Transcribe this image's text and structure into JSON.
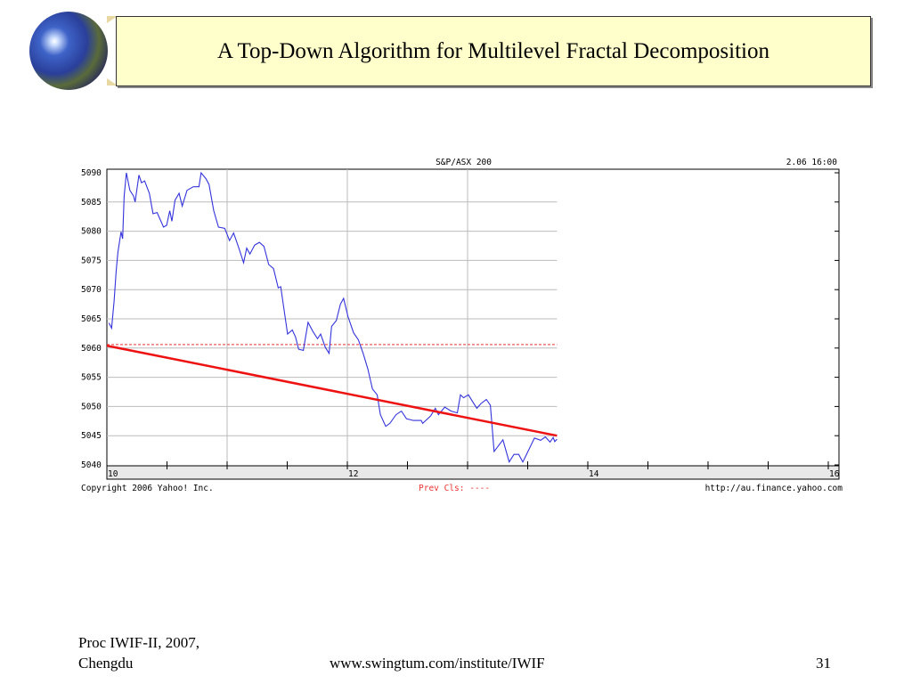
{
  "slide": {
    "title": "A Top-Down Algorithm for Multilevel Fractal Decomposition",
    "footer_left_line1": "Proc IWIF-II, 2007,",
    "footer_left_line2": "Chengdu",
    "footer_center": "www.swingtum.com/institute/IWIF",
    "page_number": "31",
    "logo_icon": "globe-icon"
  },
  "chart_data": {
    "type": "line",
    "title": "S&P/ASX 200",
    "timestamp": "2.06 16:00",
    "copyright": "Copyright 2006 Yahoo! Inc.",
    "prev_close_label": "Prev Cls: ----",
    "source_url": "http://au.finance.yahoo.com",
    "xlim": [
      10,
      16.07
    ],
    "ylim": [
      5040,
      5090
    ],
    "x_ticks": [
      10,
      12,
      14,
      16
    ],
    "x_tick_labels": [
      "10",
      "12",
      "14",
      "16"
    ],
    "y_ticks": [
      5040,
      5045,
      5050,
      5055,
      5060,
      5065,
      5070,
      5075,
      5080,
      5085,
      5090
    ],
    "y_tick_labels": [
      "5040",
      "5045",
      "5050",
      "5055",
      "5060",
      "5065",
      "5070",
      "5075",
      "5080",
      "5085",
      "5090"
    ],
    "grid": true,
    "colors": {
      "price": "#3333dd",
      "trend": "#ee1111",
      "prev_close": "#ee3333",
      "grid": "#bbbbbb",
      "axis_band": "#e8e8e8"
    },
    "prev_close": 5060.6,
    "trend_line": {
      "x": [
        10,
        13.744
      ],
      "y": [
        5060.4,
        5045.0
      ]
    },
    "series": [
      {
        "x": [
          10.018,
          10.039,
          10.06,
          10.078,
          10.092,
          10.118,
          10.131,
          10.144,
          10.162,
          10.191,
          10.222,
          10.235,
          10.267,
          10.288,
          10.314,
          10.353,
          10.384,
          10.418,
          10.471,
          10.497,
          10.523,
          10.541,
          10.567,
          10.601,
          10.627,
          10.667,
          10.719,
          10.766,
          10.784,
          10.824,
          10.85,
          10.889,
          10.928,
          10.98,
          11.02,
          11.054,
          11.098,
          11.137,
          11.163,
          11.19,
          11.229,
          11.268,
          11.307,
          11.346,
          11.386,
          11.425,
          11.446,
          11.503,
          11.542,
          11.569,
          11.595,
          11.634,
          11.673,
          11.712,
          11.752,
          11.778,
          11.817,
          11.848,
          11.869,
          11.908,
          11.942,
          11.969,
          12.005,
          12.052,
          12.092,
          12.131,
          12.17,
          12.209,
          12.248,
          12.275,
          12.319,
          12.353,
          12.405,
          12.45,
          12.492,
          12.549,
          12.614,
          12.627,
          12.693,
          12.732,
          12.758,
          12.81,
          12.863,
          12.915,
          12.941,
          12.967,
          13.007,
          13.046,
          13.077,
          13.111,
          13.156,
          13.19,
          13.221,
          13.294,
          13.346,
          13.386,
          13.425,
          13.459,
          13.49,
          13.556,
          13.608,
          13.647,
          13.686,
          13.712,
          13.725,
          13.744
        ],
        "y": [
          5064.3,
          5063.4,
          5068.0,
          5073.3,
          5076.4,
          5079.9,
          5078.7,
          5086.0,
          5090.0,
          5087.0,
          5086.0,
          5085.0,
          5089.6,
          5088.3,
          5088.6,
          5086.5,
          5083.0,
          5083.2,
          5080.7,
          5081.0,
          5083.5,
          5081.7,
          5085.3,
          5086.5,
          5084.3,
          5087.0,
          5087.6,
          5087.6,
          5090.0,
          5089.0,
          5088.0,
          5083.5,
          5080.7,
          5080.5,
          5078.4,
          5079.7,
          5077.1,
          5074.6,
          5077.1,
          5076.1,
          5077.6,
          5078.1,
          5077.4,
          5074.3,
          5073.6,
          5070.3,
          5070.5,
          5062.4,
          5063.1,
          5061.9,
          5059.8,
          5059.6,
          5064.4,
          5062.9,
          5061.6,
          5062.4,
          5060.1,
          5059.1,
          5063.7,
          5064.7,
          5067.5,
          5068.5,
          5065.4,
          5062.6,
          5061.4,
          5059.1,
          5056.5,
          5053.0,
          5052.0,
          5048.6,
          5046.6,
          5047.1,
          5048.6,
          5049.2,
          5047.9,
          5047.6,
          5047.6,
          5047.1,
          5048.4,
          5049.7,
          5048.6,
          5049.9,
          5049.2,
          5048.9,
          5052.0,
          5051.5,
          5052.0,
          5050.7,
          5049.7,
          5050.5,
          5051.2,
          5050.2,
          5042.3,
          5044.3,
          5040.5,
          5041.8,
          5041.8,
          5040.5,
          5041.8,
          5044.6,
          5044.2,
          5044.8,
          5043.9,
          5044.7,
          5044.0,
          5044.4
        ]
      }
    ]
  }
}
